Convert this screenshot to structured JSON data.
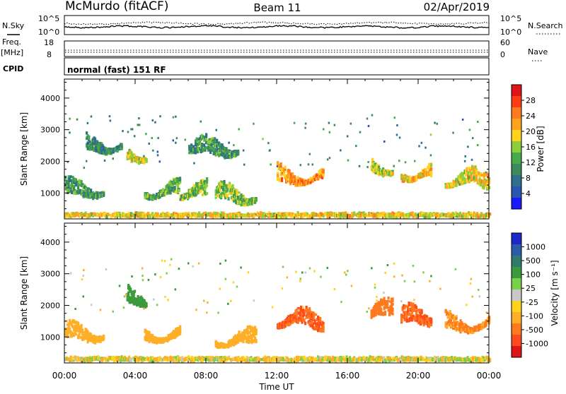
{
  "header": {
    "station": "McMurdo (fitACF)",
    "beam": "Beam 11",
    "date": "02/Apr/2019"
  },
  "noise_panel": {
    "left_label": "N.Sky",
    "right_label": "N.Search",
    "left_ticks": [
      "10^5",
      "10^0"
    ],
    "right_ticks": [
      "10^5",
      "10^0"
    ]
  },
  "freq_panel": {
    "left_label_line1": "Freq.",
    "left_label_line2": "[MHz]",
    "right_label": "Nave",
    "left_ticks": [
      "18",
      "8"
    ],
    "right_ticks": [
      "60",
      "0"
    ]
  },
  "cpid": {
    "label": "CPID",
    "value": "normal (fast) 151 RF"
  },
  "colors": {
    "power_scale": [
      "#1a1aff",
      "#2a55b0",
      "#2f6e8c",
      "#3d8a5a",
      "#49a84a",
      "#8ccf3a",
      "#ffd21e",
      "#ffa21e",
      "#ff7a1e",
      "#ff3c14",
      "#e01414"
    ],
    "velocity_scale": [
      "#1e28c8",
      "#2a5aa8",
      "#2f7a6a",
      "#3a9a3c",
      "#7ad04a",
      "#c8c8c8",
      "#ffd21e",
      "#ffae28",
      "#ff7a1e",
      "#ff4a1e",
      "#e01414"
    ]
  },
  "chart_data": [
    {
      "type": "heatmap",
      "ylabel": "Slant Range [km]",
      "xlabel": "",
      "y_ticks": [
        "1000",
        "2000",
        "3000",
        "4000"
      ],
      "x_ticks": [],
      "colorbar_label": "Power [dB]",
      "colorbar_ticks": [
        "4",
        "8",
        "12",
        "16",
        "20",
        "24",
        "28"
      ],
      "xlim": [
        0,
        24
      ],
      "ylim": [
        180,
        4600
      ],
      "features": [
        {
          "t_start": 0.0,
          "t_end": 24.0,
          "range": 300,
          "value": 18
        },
        {
          "t_start": 0.0,
          "t_end": 2.2,
          "range": 1100,
          "value": 10
        },
        {
          "t_start": 1.2,
          "t_end": 3.2,
          "range": 2500,
          "value": 9
        },
        {
          "t_start": 3.5,
          "t_end": 4.6,
          "range": 2200,
          "value": 16
        },
        {
          "t_start": 4.5,
          "t_end": 6.5,
          "range": 1050,
          "value": 12
        },
        {
          "t_start": 6.5,
          "t_end": 8.0,
          "range": 1000,
          "value": 14
        },
        {
          "t_start": 7.0,
          "t_end": 9.8,
          "range": 2400,
          "value": 10
        },
        {
          "t_start": 8.5,
          "t_end": 10.8,
          "range": 900,
          "value": 14
        },
        {
          "t_start": 12.0,
          "t_end": 14.6,
          "range": 1500,
          "value": 22
        },
        {
          "t_start": 17.3,
          "t_end": 18.5,
          "range": 1800,
          "value": 16
        },
        {
          "t_start": 19.0,
          "t_end": 20.7,
          "range": 1600,
          "value": 20
        },
        {
          "t_start": 21.5,
          "t_end": 24.0,
          "range": 1400,
          "value": 18
        }
      ]
    },
    {
      "type": "heatmap",
      "ylabel": "Slant Range [km]",
      "xlabel": "Time UT",
      "y_ticks": [
        "1000",
        "2000",
        "3000",
        "4000"
      ],
      "x_ticks": [
        "00:00",
        "04:00",
        "08:00",
        "12:00",
        "16:00",
        "20:00",
        "00:00"
      ],
      "colorbar_label": "Velocity [m s⁻¹]",
      "colorbar_ticks": [
        "1000",
        "500",
        "100",
        "25",
        "-25",
        "-100",
        "-500",
        "-1000"
      ],
      "xlim": [
        0,
        24
      ],
      "ylim": [
        180,
        4600
      ],
      "features": [
        {
          "t_start": 0.0,
          "t_end": 24.0,
          "range": 300,
          "value": -25
        },
        {
          "t_start": 0.0,
          "t_end": 2.2,
          "range": 1100,
          "value": -100
        },
        {
          "t_start": 3.5,
          "t_end": 4.6,
          "range": 2200,
          "value": 100
        },
        {
          "t_start": 4.5,
          "t_end": 6.5,
          "range": 1050,
          "value": -100
        },
        {
          "t_start": 8.5,
          "t_end": 10.8,
          "range": 900,
          "value": -100
        },
        {
          "t_start": 12.0,
          "t_end": 14.6,
          "range": 1500,
          "value": -500
        },
        {
          "t_start": 17.3,
          "t_end": 18.5,
          "range": 1800,
          "value": -300
        },
        {
          "t_start": 19.0,
          "t_end": 20.7,
          "range": 1600,
          "value": -500
        },
        {
          "t_start": 21.5,
          "t_end": 24.0,
          "range": 1400,
          "value": -200
        }
      ]
    }
  ]
}
